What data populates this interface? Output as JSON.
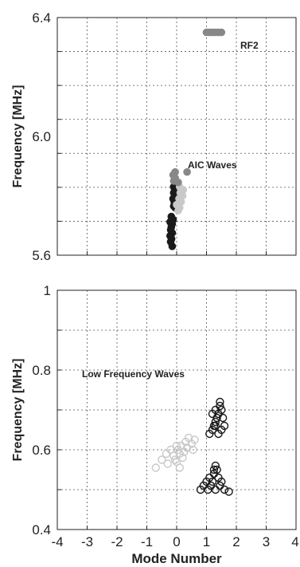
{
  "chart_data": [
    {
      "type": "scatter",
      "title": "",
      "xlabel": "",
      "ylabel": "Frequency  [MHz]",
      "xlim": [
        -4,
        4
      ],
      "ylim": [
        5.6,
        6.4
      ],
      "grid": true,
      "yticks": [
        5.6,
        6.0,
        6.4
      ],
      "ytick_labels": [
        "5.6",
        "6.0",
        "6.4"
      ],
      "annotations": [
        "RF2",
        "AIC Waves"
      ],
      "series": [
        {
          "color": "#1a1a1a",
          "marker": "filled",
          "points": [
            [
              -0.15,
              5.63
            ],
            [
              -0.2,
              5.645
            ],
            [
              -0.17,
              5.655
            ],
            [
              -0.22,
              5.665
            ],
            [
              -0.15,
              5.675
            ],
            [
              -0.2,
              5.685
            ],
            [
              -0.18,
              5.695
            ],
            [
              -0.15,
              5.705
            ],
            [
              -0.22,
              5.712
            ],
            [
              -0.12,
              5.72
            ],
            [
              -0.18,
              5.73
            ],
            [
              -0.05,
              5.76
            ],
            [
              -0.1,
              5.765
            ],
            [
              -0.08,
              5.78
            ],
            [
              -0.12,
              5.79
            ],
            [
              -0.05,
              5.8
            ],
            [
              -0.1,
              5.81
            ],
            [
              -0.06,
              5.82
            ],
            [
              -0.1,
              5.83
            ]
          ]
        },
        {
          "color": "#c9c9c9",
          "marker": "filled",
          "points": [
            [
              0.05,
              5.75
            ],
            [
              0.1,
              5.76
            ],
            [
              0.0,
              5.77
            ],
            [
              0.15,
              5.78
            ],
            [
              0.08,
              5.79
            ],
            [
              0.2,
              5.8
            ],
            [
              0.12,
              5.81
            ],
            [
              0.22,
              5.82
            ],
            [
              0.1,
              5.83
            ]
          ]
        },
        {
          "color": "#888888",
          "marker": "filled",
          "points": [
            [
              -0.1,
              5.85
            ],
            [
              -0.05,
              5.86
            ],
            [
              -0.12,
              5.87
            ],
            [
              -0.05,
              5.88
            ],
            [
              0.35,
              5.88
            ],
            [
              0.05,
              5.845
            ],
            [
              1.0,
              6.35
            ],
            [
              1.1,
              6.35
            ],
            [
              1.2,
              6.35
            ],
            [
              1.3,
              6.35
            ],
            [
              1.4,
              6.35
            ],
            [
              1.5,
              6.35
            ]
          ]
        }
      ]
    },
    {
      "type": "scatter",
      "title": "",
      "xlabel": "Mode Number",
      "ylabel": "Frequency  [MHz]",
      "xlim": [
        -4,
        4
      ],
      "ylim": [
        0.4,
        1.0
      ],
      "grid": true,
      "xticks": [
        -4,
        -3,
        -2,
        -1,
        0,
        1,
        2,
        3,
        4
      ],
      "xtick_labels": [
        "-4",
        "-3",
        "-2",
        "-1",
        "0",
        "1",
        "2",
        "3",
        "4"
      ],
      "yticks": [
        0.4,
        0.6,
        0.8,
        1.0
      ],
      "ytick_labels": [
        "0.4",
        "0.6",
        "0.8",
        "1"
      ],
      "annotations": [
        "Low Frequency Waves"
      ],
      "series": [
        {
          "color": "#c9c9c9",
          "marker": "open",
          "points": [
            [
              -0.7,
              0.555
            ],
            [
              -0.5,
              0.575
            ],
            [
              -0.35,
              0.59
            ],
            [
              -0.3,
              0.565
            ],
            [
              -0.2,
              0.6
            ],
            [
              -0.1,
              0.585
            ],
            [
              0.0,
              0.57
            ],
            [
              0.05,
              0.6
            ],
            [
              0.1,
              0.59
            ],
            [
              0.15,
              0.61
            ],
            [
              0.2,
              0.58
            ],
            [
              0.25,
              0.595
            ],
            [
              0.3,
              0.62
            ],
            [
              0.35,
              0.605
            ],
            [
              0.4,
              0.63
            ],
            [
              0.5,
              0.615
            ],
            [
              0.55,
              0.6
            ],
            [
              0.6,
              0.625
            ],
            [
              0.0,
              0.61
            ],
            [
              -0.05,
              0.575
            ],
            [
              0.1,
              0.555
            ]
          ]
        },
        {
          "color": "#1a1a1a",
          "marker": "open",
          "points": [
            [
              0.8,
              0.5
            ],
            [
              0.9,
              0.51
            ],
            [
              1.0,
              0.52
            ],
            [
              1.05,
              0.5
            ],
            [
              1.1,
              0.53
            ],
            [
              1.15,
              0.51
            ],
            [
              1.2,
              0.52
            ],
            [
              1.25,
              0.54
            ],
            [
              1.3,
              0.5
            ],
            [
              1.35,
              0.55
            ],
            [
              1.4,
              0.53
            ],
            [
              1.45,
              0.51
            ],
            [
              1.5,
              0.52
            ],
            [
              1.6,
              0.5
            ],
            [
              1.75,
              0.495
            ],
            [
              1.3,
              0.56
            ],
            [
              1.25,
              0.55
            ],
            [
              1.1,
              0.64
            ],
            [
              1.2,
              0.65
            ],
            [
              1.25,
              0.66
            ],
            [
              1.3,
              0.67
            ],
            [
              1.35,
              0.68
            ],
            [
              1.4,
              0.69
            ],
            [
              1.3,
              0.7
            ],
            [
              1.45,
              0.71
            ],
            [
              1.5,
              0.7
            ],
            [
              1.55,
              0.68
            ],
            [
              1.6,
              0.66
            ],
            [
              1.5,
              0.65
            ],
            [
              1.4,
              0.64
            ],
            [
              1.3,
              0.66
            ],
            [
              1.2,
              0.69
            ],
            [
              1.45,
              0.72
            ]
          ]
        }
      ]
    }
  ]
}
